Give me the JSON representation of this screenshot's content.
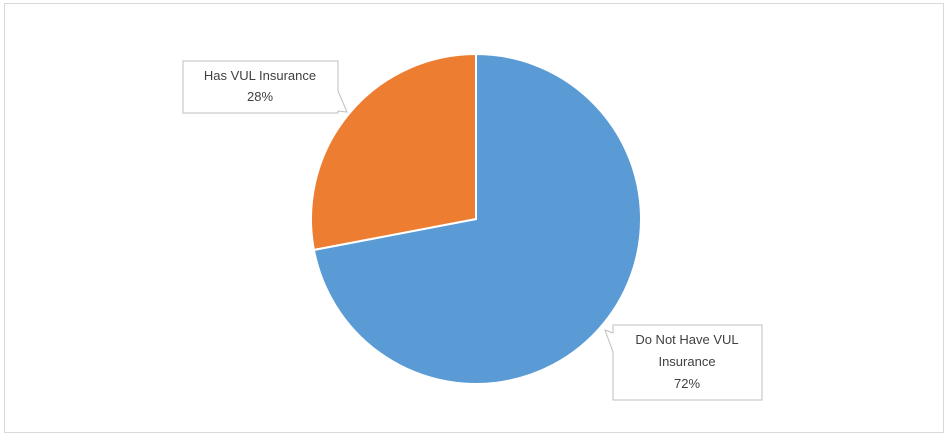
{
  "chart_data": {
    "type": "pie",
    "title": "",
    "slices": [
      {
        "name": "Has VUL Insurance",
        "value": 28,
        "color": "#ED7D31"
      },
      {
        "name": "Do Not Have VUL Insurance",
        "value": 72,
        "color": "#5B9BD5"
      }
    ],
    "labels": [
      {
        "lines": [
          "Has VUL Insurance",
          "28%"
        ]
      },
      {
        "lines": [
          "Do Not Have VUL",
          "Insurance",
          "72%"
        ]
      }
    ],
    "legend": "none"
  }
}
